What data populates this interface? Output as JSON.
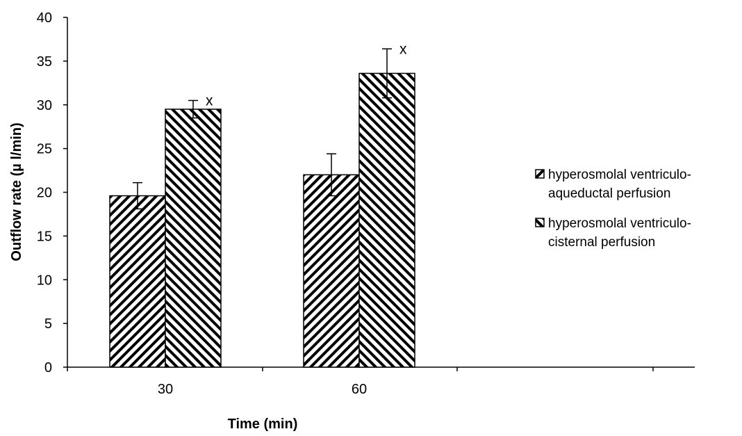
{
  "chart_data": {
    "type": "bar",
    "categories": [
      "30",
      "60"
    ],
    "series": [
      {
        "name": "hyperosmolal ventriculo-aqueductal perfusion",
        "legend_lines": [
          "hyperosmolal ventriculo-",
          "aqueductal perfusion"
        ],
        "pattern": "hatch-forward",
        "values": [
          19.6,
          22.0
        ],
        "errors": [
          1.5,
          2.4
        ],
        "annotations": [
          "",
          ""
        ]
      },
      {
        "name": "hyperosmolal ventriculo-cisternal perfusion",
        "legend_lines": [
          "hyperosmolal ventriculo-",
          "cisternal perfusion"
        ],
        "pattern": "hatch-backward",
        "values": [
          29.5,
          33.6
        ],
        "errors": [
          1.0,
          2.8
        ],
        "annotations": [
          "x",
          "x"
        ]
      }
    ],
    "xlabel": "Time (min)",
    "ylabel": "Outflow rate (µ l/min)",
    "ylim": [
      0,
      40
    ],
    "yticks": [
      "0",
      "5",
      "10",
      "15",
      "20",
      "25",
      "30",
      "35",
      "40"
    ],
    "grid": false,
    "legend_position": "right",
    "colors": {
      "bar_fill": "#ffffff",
      "hatch": "#000000",
      "axis": "#000000"
    }
  }
}
